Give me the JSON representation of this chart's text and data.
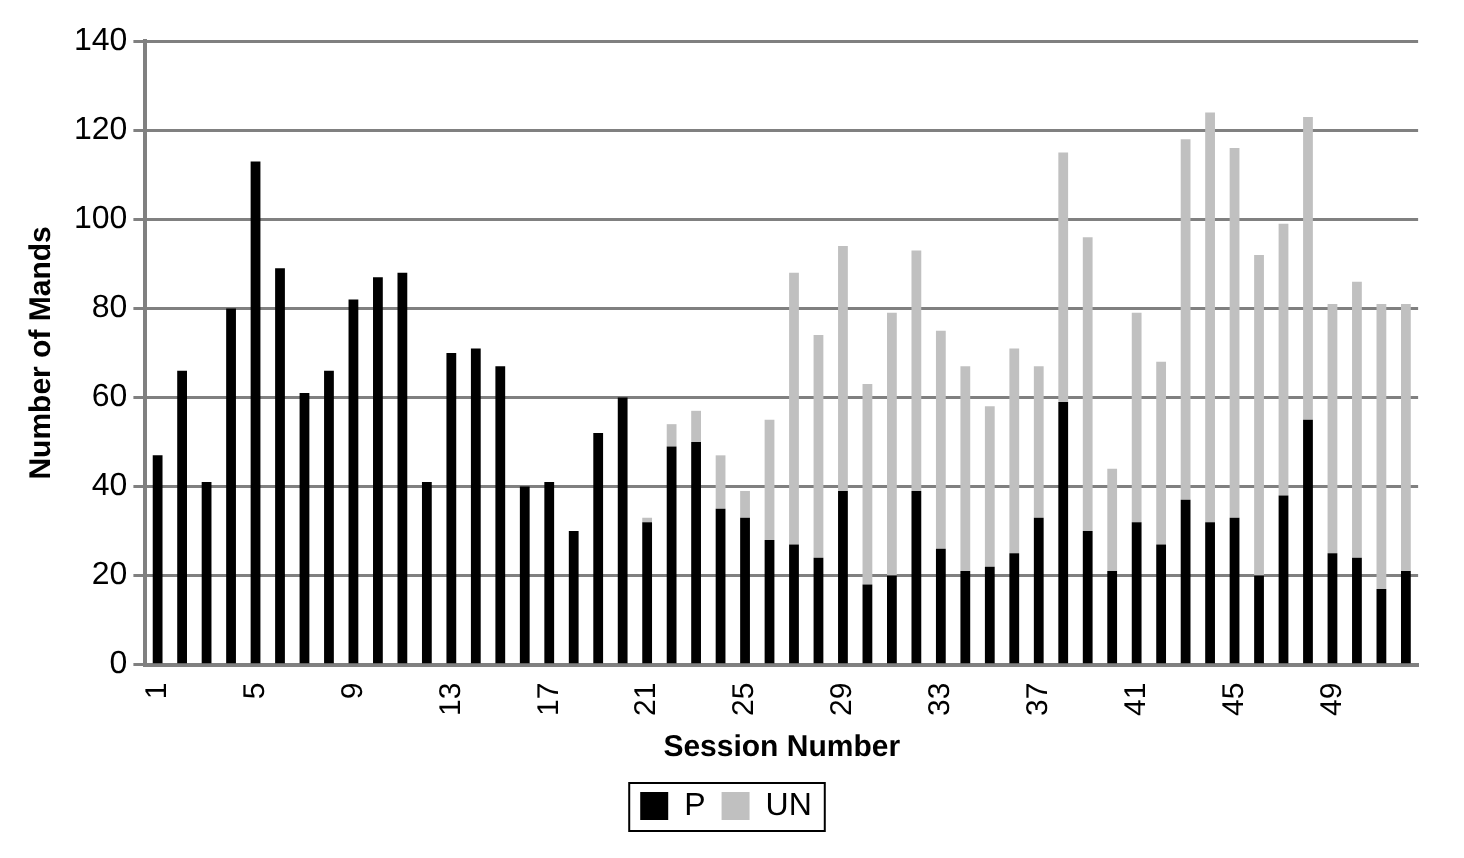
{
  "chart_data": {
    "type": "bar",
    "stacked": true,
    "xlabel": "Session Number",
    "ylabel": "Number of Mands",
    "categories": [
      "1",
      null,
      null,
      null,
      "5",
      null,
      null,
      null,
      "9",
      null,
      null,
      null,
      "13",
      null,
      null,
      null,
      "17",
      null,
      null,
      null,
      "21",
      null,
      null,
      null,
      "25",
      null,
      null,
      null,
      "29",
      null,
      null,
      null,
      "33",
      null,
      null,
      null,
      "37",
      null,
      null,
      null,
      "41",
      null,
      null,
      null,
      "45",
      null,
      null,
      null,
      "49",
      null,
      null,
      null
    ],
    "series": [
      {
        "name": "P",
        "color": "#000000",
        "values": [
          47,
          66,
          41,
          80,
          113,
          89,
          61,
          66,
          82,
          87,
          88,
          41,
          70,
          71,
          67,
          40,
          41,
          30,
          52,
          60,
          32,
          49,
          50,
          35,
          33,
          28,
          27,
          24,
          39,
          18,
          20,
          39,
          26,
          21,
          22,
          25,
          33,
          59,
          30,
          21,
          32,
          27,
          37,
          32,
          33,
          20,
          38,
          55,
          25,
          24,
          17,
          21
        ]
      },
      {
        "name": "UN",
        "color": "#c0c0c0",
        "values": [
          0,
          0,
          0,
          0,
          0,
          0,
          0,
          0,
          0,
          0,
          0,
          0,
          0,
          0,
          0,
          0,
          0,
          0,
          0,
          0,
          1,
          5,
          7,
          12,
          6,
          27,
          61,
          50,
          55,
          45,
          59,
          54,
          49,
          46,
          36,
          46,
          34,
          56,
          66,
          23,
          47,
          41,
          81,
          92,
          83,
          72,
          61,
          68,
          56,
          62,
          64,
          60
        ]
      }
    ],
    "ylim": [
      0,
      140
    ],
    "yticks": [
      0,
      20,
      40,
      60,
      80,
      100,
      120,
      140
    ],
    "grid": "y",
    "legend": "bottom"
  }
}
